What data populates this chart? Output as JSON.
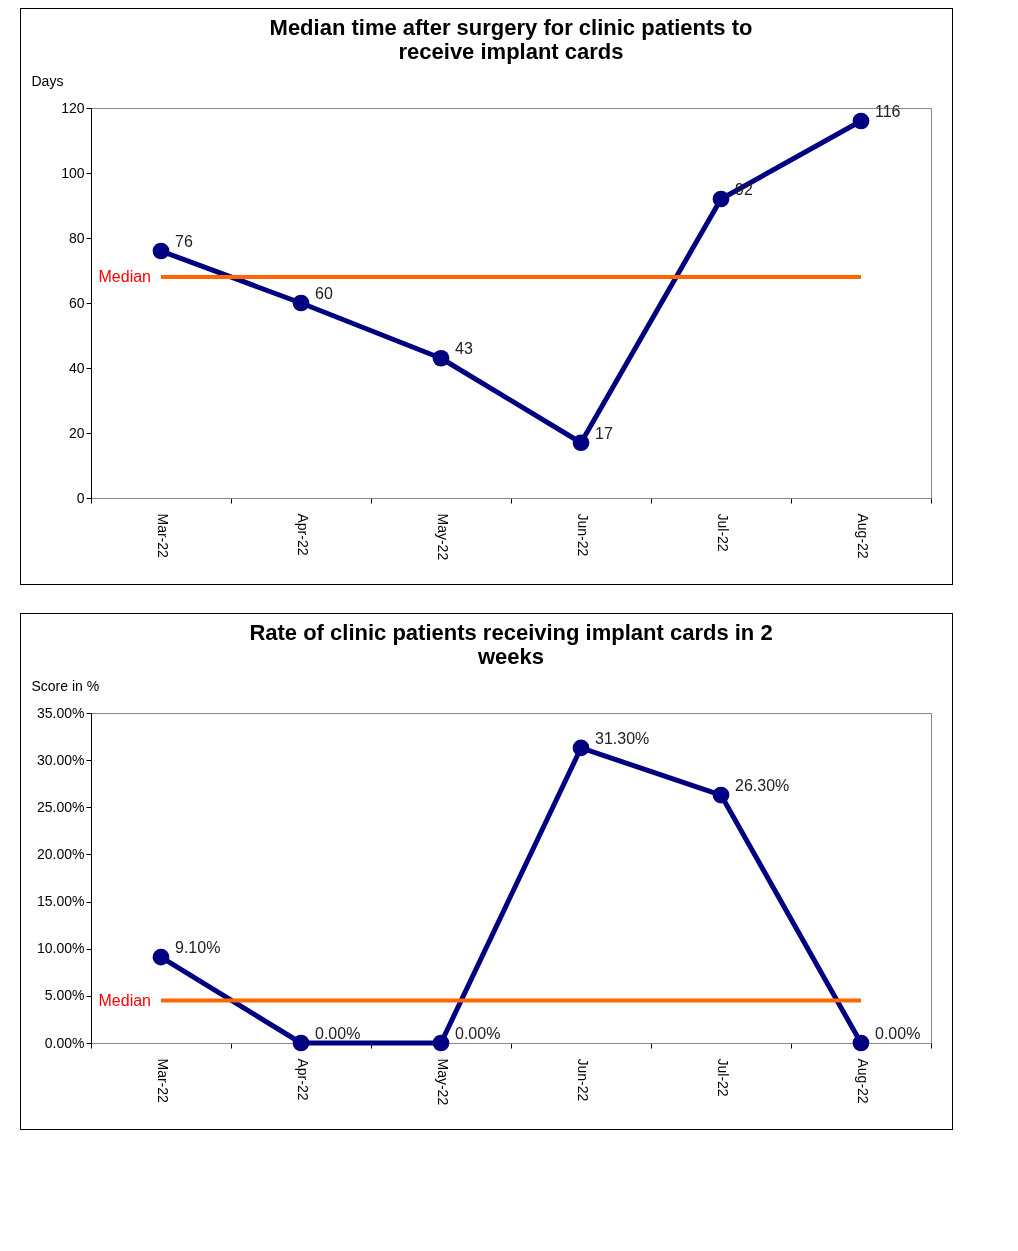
{
  "chart_data": [
    {
      "type": "line",
      "title": [
        "Median time after surgery for clinic patients to",
        "receive implant cards"
      ],
      "ylabel": "Days",
      "categories": [
        "Mar-22",
        "Apr-22",
        "May-22",
        "Jun-22",
        "Jul-22",
        "Aug-22"
      ],
      "series": [
        {
          "color": "#000080",
          "values": [
            76,
            60,
            43,
            17,
            92,
            116
          ]
        }
      ],
      "ylim": [
        0,
        120
      ],
      "yticks": [
        0,
        20,
        40,
        60,
        80,
        100,
        120
      ],
      "grid": false,
      "marker": "circle",
      "data_labels": true,
      "ref_lines": [
        {
          "axis": "y",
          "value": 68,
          "label": "Median",
          "color": "#ff6600"
        }
      ]
    },
    {
      "type": "line",
      "title": [
        "Rate of clinic patients receiving implant cards in 2",
        "weeks"
      ],
      "ylabel": "Score in %",
      "categories": [
        "Mar-22",
        "Apr-22",
        "May-22",
        "Jun-22",
        "Jul-22",
        "Aug-22"
      ],
      "series": [
        {
          "color": "#000080",
          "values": [
            9.1,
            0,
            0,
            31.3,
            26.3,
            0
          ],
          "value_labels": [
            "9.10%",
            "0.00%",
            "0.00%",
            "31.30%",
            "26.30%",
            "0.00%"
          ]
        }
      ],
      "ylim": [
        0,
        35
      ],
      "yticks": [
        {
          "value": 0,
          "label": "0.00%"
        },
        {
          "value": 5,
          "label": "5.00%"
        },
        {
          "value": 10,
          "label": "10.00%"
        },
        {
          "value": 15,
          "label": "15.00%"
        },
        {
          "value": 20,
          "label": "20.00%"
        },
        {
          "value": 25,
          "label": "25.00%"
        },
        {
          "value": 30,
          "label": "30.00%"
        },
        {
          "value": 35,
          "label": "35.00%"
        }
      ],
      "grid": false,
      "marker": "circle",
      "ref_lines": [
        {
          "axis": "y",
          "value": 4.5,
          "label": "Median",
          "color": "#ff6600"
        }
      ]
    }
  ]
}
